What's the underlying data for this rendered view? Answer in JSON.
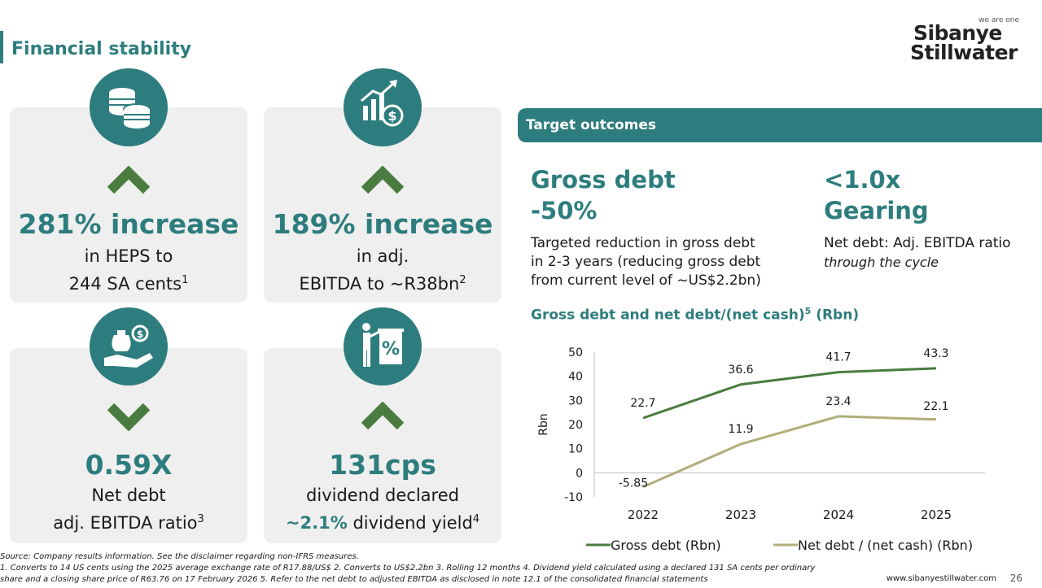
{
  "header": {
    "title": "Financial stability",
    "logo_tag": "we are one",
    "logo_line1": "Sibanye",
    "logo_line2": "Stillwater"
  },
  "cards": [
    {
      "icon": "coins-icon",
      "direction": "up",
      "headline": "281% increase",
      "line1": "in HEPS to",
      "line2": "244 SA cents",
      "sup": "1"
    },
    {
      "icon": "growth-dollar-icon",
      "direction": "up",
      "headline": "189% increase",
      "line1": "in adj.",
      "line2": "EBITDA to ~R38bn",
      "sup": "2"
    },
    {
      "icon": "money-bag-hand-icon",
      "direction": "down",
      "headline": "0.59X",
      "line1": "Net debt",
      "line2": "adj. EBITDA ratio",
      "sup": "3"
    },
    {
      "icon": "dividend-percent-icon",
      "direction": "up",
      "headline": "131cps",
      "line1": "dividend declared",
      "line2_highlight": "~2.1%",
      "line2": " dividend yield",
      "sup": "4"
    }
  ],
  "target": {
    "label": "Target outcomes",
    "gross_debt": {
      "title1": "Gross debt",
      "title2": "-50%",
      "desc1": "Targeted reduction in gross debt",
      "desc2": "in 2-3 years (reducing gross debt",
      "desc3": "from current level of ~US$2.2bn)"
    },
    "gearing": {
      "title1": "<1.0x",
      "title2": "Gearing",
      "desc1": "Net debt: Adj. EBITDA ratio",
      "desc2": "through the cycle"
    }
  },
  "chart_title": "Gross debt and net debt/(net cash)",
  "chart_title_sup": "5",
  "chart_title_unit": " (Rbn)",
  "chart_data": {
    "type": "line",
    "x": [
      "2022",
      "2023",
      "2024",
      "2025"
    ],
    "ylabel": "Rbn",
    "ylim": [
      -10,
      50
    ],
    "yticks": [
      -10,
      0,
      10,
      20,
      30,
      40,
      50
    ],
    "grid": false,
    "legend": "bottom",
    "series": [
      {
        "name": "Gross debt (Rbn)",
        "values": [
          22.7,
          36.6,
          41.7,
          43.3
        ],
        "labels": [
          "22.7",
          "36.6",
          "41.7",
          "43.3"
        ],
        "color": "#4a7c3f"
      },
      {
        "name": "Net debt / (net cash) (Rbn)",
        "values": [
          -5.85,
          11.9,
          23.4,
          22.1
        ],
        "labels": [
          "-5.85",
          "11.9",
          "23.4",
          "22.1"
        ],
        "color": "#b0ae7a"
      }
    ]
  },
  "colors": {
    "accent": "#2e7d7e",
    "chevron": "#4a7c3f",
    "card_bg": "#efefef"
  },
  "footer": {
    "source": "Source: Company results information. See the disclaimer regarding non-IFRS measures.",
    "note1": "1. Converts to 14 US cents using the 2025 average exchange rate of R17.88/US$ 2. Converts to US$2.2bn 3. Rolling 12 months 4. Dividend yield calculated using a declared 131 SA cents per ordinary",
    "note2": "share and a closing share price of R63.76 on 17 February 2026 5. Refer to the net debt to adjusted EBITDA as disclosed in note 12.1 of the consolidated financial statements",
    "website": "www.sibanyestillwater.com",
    "page": "26"
  }
}
